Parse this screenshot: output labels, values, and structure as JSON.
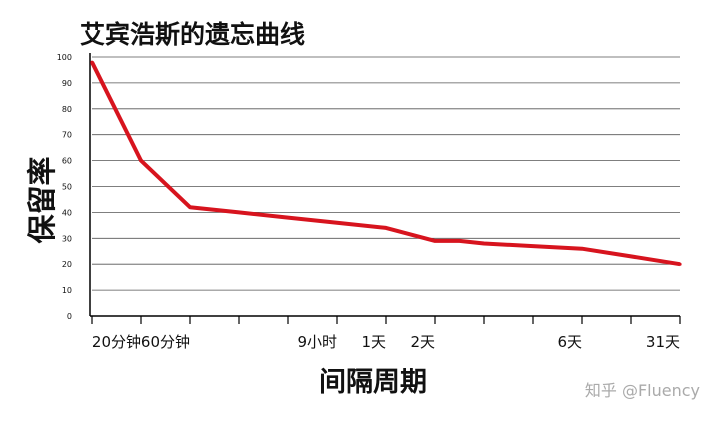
{
  "chart_data": {
    "type": "line",
    "title": "艾宾浩斯的遗忘曲线",
    "xlabel": "间隔周期",
    "ylabel": "保留率",
    "ylim": [
      0,
      100
    ],
    "yticks": [
      0,
      10,
      20,
      30,
      40,
      50,
      60,
      70,
      80,
      90,
      100
    ],
    "xticks": [
      {
        "t": 0,
        "label": ""
      },
      {
        "t": 1,
        "label": "20分钟"
      },
      {
        "t": 2,
        "label": "60分钟"
      },
      {
        "t": 3,
        "label": ""
      },
      {
        "t": 4,
        "label": ""
      },
      {
        "t": 5,
        "label": "9小时"
      },
      {
        "t": 6,
        "label": "1天"
      },
      {
        "t": 7,
        "label": "2天"
      },
      {
        "t": 8,
        "label": ""
      },
      {
        "t": 9,
        "label": ""
      },
      {
        "t": 10,
        "label": "6天"
      },
      {
        "t": 11,
        "label": ""
      },
      {
        "t": 12,
        "label": "31天"
      }
    ],
    "series": [
      {
        "color": "#d7141e",
        "points": [
          {
            "t": 0,
            "y": 98
          },
          {
            "t": 1,
            "y": 60
          },
          {
            "t": 2,
            "y": 42
          },
          {
            "t": 3,
            "y": 40
          },
          {
            "t": 4,
            "y": 38
          },
          {
            "t": 5,
            "y": 36
          },
          {
            "t": 6,
            "y": 34
          },
          {
            "t": 7,
            "y": 29
          },
          {
            "t": 7.5,
            "y": 29
          },
          {
            "t": 8,
            "y": 28
          },
          {
            "t": 9,
            "y": 27
          },
          {
            "t": 10,
            "y": 26
          },
          {
            "t": 11,
            "y": 23
          },
          {
            "t": 12,
            "y": 20
          }
        ]
      }
    ],
    "grid": true
  },
  "watermark": "知乎 @Fluency"
}
